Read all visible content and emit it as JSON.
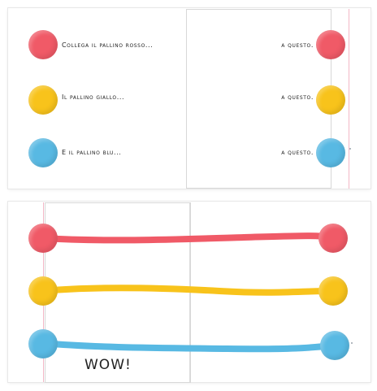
{
  "spread_top": {
    "rows": [
      {
        "left_text": "Collega il pallino rosso...",
        "right_text": "a questo.",
        "color": "#f05a67"
      },
      {
        "left_text": "Il pallino giallo...",
        "right_text": "a questo.",
        "color": "#f8c31b"
      },
      {
        "left_text": "E il pallino blu...",
        "right_text": "a questo.",
        "color": "#58b9e3"
      }
    ]
  },
  "spread_bottom": {
    "lines": [
      {
        "color": "#f05a67"
      },
      {
        "color": "#f8c31b"
      },
      {
        "color": "#58b9e3"
      }
    ],
    "exclamation": "WOW!"
  }
}
